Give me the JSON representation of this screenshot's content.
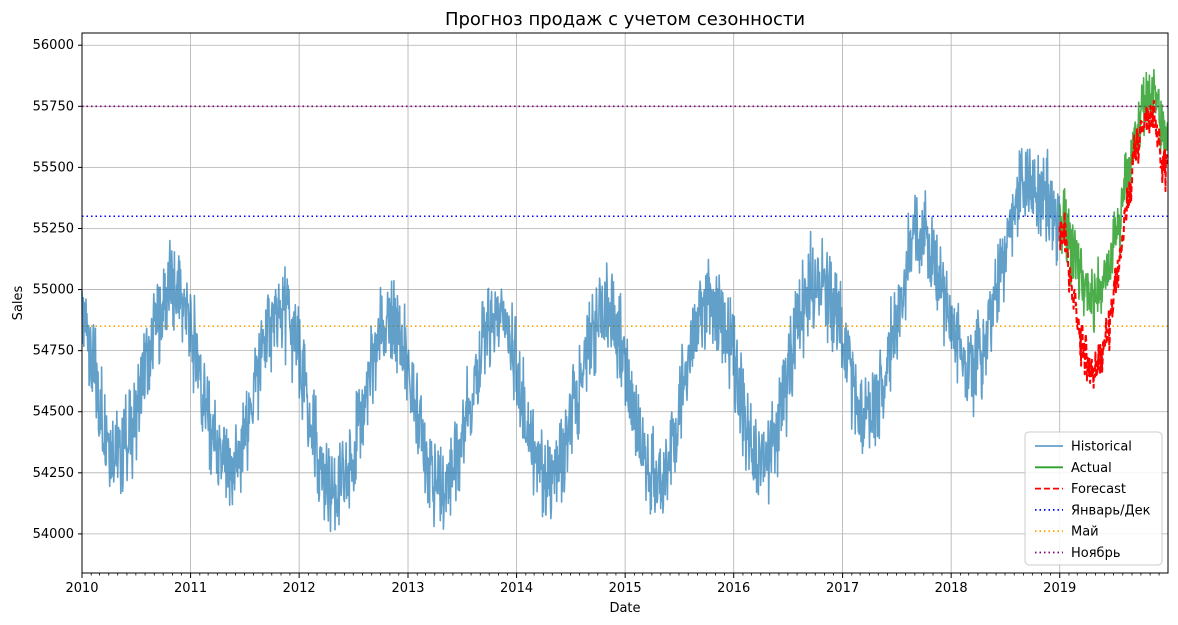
{
  "chart_data": {
    "type": "line",
    "title": "Прогноз продаж с учетом сезонности",
    "xlabel": "Date",
    "ylabel": "Sales",
    "xlim": [
      "2010-01-01",
      "2019-12-31"
    ],
    "ylim": [
      53840,
      56050
    ],
    "yticks": [
      54000,
      54250,
      54500,
      54750,
      55000,
      55250,
      55500,
      55750,
      56000
    ],
    "xticks": [
      "2010",
      "2011",
      "2012",
      "2013",
      "2014",
      "2015",
      "2016",
      "2017",
      "2018",
      "2019"
    ],
    "grid": true,
    "legend_position": "lower-right",
    "series": [
      {
        "name": "Historical",
        "style": "solid",
        "color": "#1f77b4",
        "points": [
          [
            "2010-01",
            54850
          ],
          [
            "2010-02",
            54640
          ],
          [
            "2010-03",
            54480
          ],
          [
            "2010-04",
            54380
          ],
          [
            "2010-05",
            54350
          ],
          [
            "2010-06",
            54430
          ],
          [
            "2010-07",
            54560
          ],
          [
            "2010-08",
            54720
          ],
          [
            "2010-09",
            54880
          ],
          [
            "2010-10",
            54980
          ],
          [
            "2010-11",
            55010
          ],
          [
            "2010-12",
            54900
          ],
          [
            "2011-01",
            54760
          ],
          [
            "2011-02",
            54560
          ],
          [
            "2011-03",
            54380
          ],
          [
            "2011-04",
            54270
          ],
          [
            "2011-05",
            54240
          ],
          [
            "2011-06",
            54320
          ],
          [
            "2011-07",
            54480
          ],
          [
            "2011-08",
            54650
          ],
          [
            "2011-09",
            54810
          ],
          [
            "2011-10",
            54880
          ],
          [
            "2011-11",
            54900
          ],
          [
            "2011-12",
            54790
          ],
          [
            "2012-01",
            54620
          ],
          [
            "2012-02",
            54420
          ],
          [
            "2012-03",
            54250
          ],
          [
            "2012-04",
            54180
          ],
          [
            "2012-05",
            54160
          ],
          [
            "2012-06",
            54240
          ],
          [
            "2012-07",
            54400
          ],
          [
            "2012-08",
            54580
          ],
          [
            "2012-09",
            54750
          ],
          [
            "2012-10",
            54850
          ],
          [
            "2012-11",
            54860
          ],
          [
            "2012-12",
            54760
          ],
          [
            "2013-01",
            54610
          ],
          [
            "2013-02",
            54420
          ],
          [
            "2013-03",
            54260
          ],
          [
            "2013-04",
            54190
          ],
          [
            "2013-05",
            54210
          ],
          [
            "2013-06",
            54320
          ],
          [
            "2013-07",
            54490
          ],
          [
            "2013-08",
            54660
          ],
          [
            "2013-09",
            54800
          ],
          [
            "2013-10",
            54880
          ],
          [
            "2013-11",
            54880
          ],
          [
            "2013-12",
            54770
          ],
          [
            "2014-01",
            54600
          ],
          [
            "2014-02",
            54410
          ],
          [
            "2014-03",
            54260
          ],
          [
            "2014-04",
            54200
          ],
          [
            "2014-05",
            54230
          ],
          [
            "2014-06",
            54350
          ],
          [
            "2014-07",
            54530
          ],
          [
            "2014-08",
            54700
          ],
          [
            "2014-09",
            54830
          ],
          [
            "2014-10",
            54900
          ],
          [
            "2014-11",
            54900
          ],
          [
            "2014-12",
            54780
          ],
          [
            "2015-01",
            54600
          ],
          [
            "2015-02",
            54410
          ],
          [
            "2015-03",
            54270
          ],
          [
            "2015-04",
            54220
          ],
          [
            "2015-05",
            54260
          ],
          [
            "2015-06",
            54400
          ],
          [
            "2015-07",
            54600
          ],
          [
            "2015-08",
            54780
          ],
          [
            "2015-09",
            54910
          ],
          [
            "2015-10",
            54950
          ],
          [
            "2015-11",
            54920
          ],
          [
            "2015-12",
            54800
          ],
          [
            "2016-01",
            54620
          ],
          [
            "2016-02",
            54440
          ],
          [
            "2016-03",
            54330
          ],
          [
            "2016-04",
            54310
          ],
          [
            "2016-05",
            54380
          ],
          [
            "2016-06",
            54540
          ],
          [
            "2016-07",
            54740
          ],
          [
            "2016-08",
            54920
          ],
          [
            "2016-09",
            55030
          ],
          [
            "2016-10",
            55060
          ],
          [
            "2016-11",
            55000
          ],
          [
            "2016-12",
            54860
          ],
          [
            "2017-01",
            54700
          ],
          [
            "2017-02",
            54550
          ],
          [
            "2017-03",
            54480
          ],
          [
            "2017-04",
            54500
          ],
          [
            "2017-05",
            54600
          ],
          [
            "2017-06",
            54780
          ],
          [
            "2017-07",
            54980
          ],
          [
            "2017-08",
            55150
          ],
          [
            "2017-09",
            55230
          ],
          [
            "2017-10",
            55200
          ],
          [
            "2017-11",
            55080
          ],
          [
            "2017-12",
            54920
          ],
          [
            "2018-01",
            54800
          ],
          [
            "2018-02",
            54700
          ],
          [
            "2018-03",
            54680
          ],
          [
            "2018-04",
            54750
          ],
          [
            "2018-05",
            54880
          ],
          [
            "2018-06",
            55060
          ],
          [
            "2018-07",
            55250
          ],
          [
            "2018-08",
            55390
          ],
          [
            "2018-09",
            55440
          ],
          [
            "2018-10",
            55420
          ],
          [
            "2018-11",
            55360
          ],
          [
            "2018-12",
            55300
          ]
        ]
      },
      {
        "name": "Actual",
        "style": "solid",
        "color": "#2ca02c",
        "points": [
          [
            "2019-01",
            55280
          ],
          [
            "2019-02",
            55150
          ],
          [
            "2019-03",
            55020
          ],
          [
            "2019-04",
            54960
          ],
          [
            "2019-05",
            54990
          ],
          [
            "2019-06",
            55090
          ],
          [
            "2019-07",
            55250
          ],
          [
            "2019-08",
            55460
          ],
          [
            "2019-09",
            55650
          ],
          [
            "2019-10",
            55760
          ],
          [
            "2019-11",
            55760
          ],
          [
            "2019-12",
            55620
          ]
        ]
      },
      {
        "name": "Forecast",
        "style": "dashed",
        "color": "#ff0000",
        "points": [
          [
            "2019-01",
            55230
          ],
          [
            "2019-02",
            54980
          ],
          [
            "2019-03",
            54780
          ],
          [
            "2019-04",
            54680
          ],
          [
            "2019-05",
            54690
          ],
          [
            "2019-06",
            54830
          ],
          [
            "2019-07",
            55060
          ],
          [
            "2019-08",
            55340
          ],
          [
            "2019-09",
            55570
          ],
          [
            "2019-10",
            55700
          ],
          [
            "2019-11",
            55690
          ],
          [
            "2019-12",
            55500
          ]
        ]
      },
      {
        "name": "Январь/Дек",
        "style": "dotted-hline",
        "color": "#0000ff",
        "y": 55300
      },
      {
        "name": "Май",
        "style": "dotted-hline",
        "color": "#ffa500",
        "y": 54850
      },
      {
        "name": "Ноябрь",
        "style": "dotted-hline",
        "color": "#800080",
        "y": 55750
      }
    ]
  }
}
